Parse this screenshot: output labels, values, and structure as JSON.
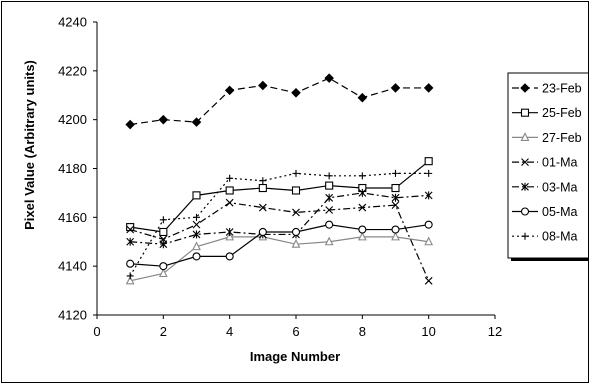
{
  "chart_data": {
    "type": "line",
    "title": "",
    "xlabel": "Image Number",
    "ylabel": "Pixel Value (Arbitrary units)",
    "xlim": [
      0,
      12
    ],
    "ylim": [
      4120,
      4240
    ],
    "xticks": [
      0,
      2,
      4,
      6,
      8,
      10,
      12
    ],
    "yticks": [
      4120,
      4140,
      4160,
      4180,
      4200,
      4220,
      4240
    ],
    "grid": false,
    "legend_position": "right (partially cropped)",
    "x": [
      1,
      2,
      3,
      4,
      5,
      6,
      7,
      8,
      9,
      10
    ],
    "series": [
      {
        "name": "23-Feb",
        "marker": "diamond-filled",
        "dash": "dashed",
        "color": "#000000",
        "values": [
          4198,
          4200,
          4199,
          4212,
          4214,
          4211,
          4217,
          4209,
          4213,
          4213
        ]
      },
      {
        "name": "25-Feb",
        "marker": "square-open",
        "dash": "solid",
        "color": "#000000",
        "values": [
          4156,
          4154,
          4169,
          4171,
          4172,
          4171,
          4173,
          4172,
          4172,
          4183
        ]
      },
      {
        "name": "27-Feb",
        "marker": "triangle-open",
        "dash": "solid",
        "color": "#888888",
        "values": [
          4134,
          4137,
          4148,
          4152,
          4152,
          4149,
          4150,
          4152,
          4152,
          4150
        ]
      },
      {
        "name": "01-Ma",
        "marker": "x",
        "dash": "dashdot",
        "color": "#000000",
        "values": [
          4155,
          4151,
          4157,
          4166,
          4164,
          4162,
          4163,
          4164,
          4165,
          4134
        ]
      },
      {
        "name": "03-Ma",
        "marker": "asterisk",
        "dash": "dashdot",
        "color": "#000000",
        "values": [
          4150,
          4149,
          4153,
          4154,
          4153,
          4153,
          4168,
          4170,
          4168,
          4169
        ]
      },
      {
        "name": "05-Ma",
        "marker": "circle-open",
        "dash": "solid",
        "color": "#000000",
        "values": [
          4141,
          4140,
          4144,
          4144,
          4154,
          4154,
          4157,
          4155,
          4155,
          4157
        ]
      },
      {
        "name": "08-Ma",
        "marker": "plus",
        "dash": "dotted",
        "color": "#000000",
        "values": [
          4136,
          4159,
          4160,
          4176,
          4175,
          4178,
          4177,
          4177,
          4178,
          4178
        ]
      }
    ]
  }
}
